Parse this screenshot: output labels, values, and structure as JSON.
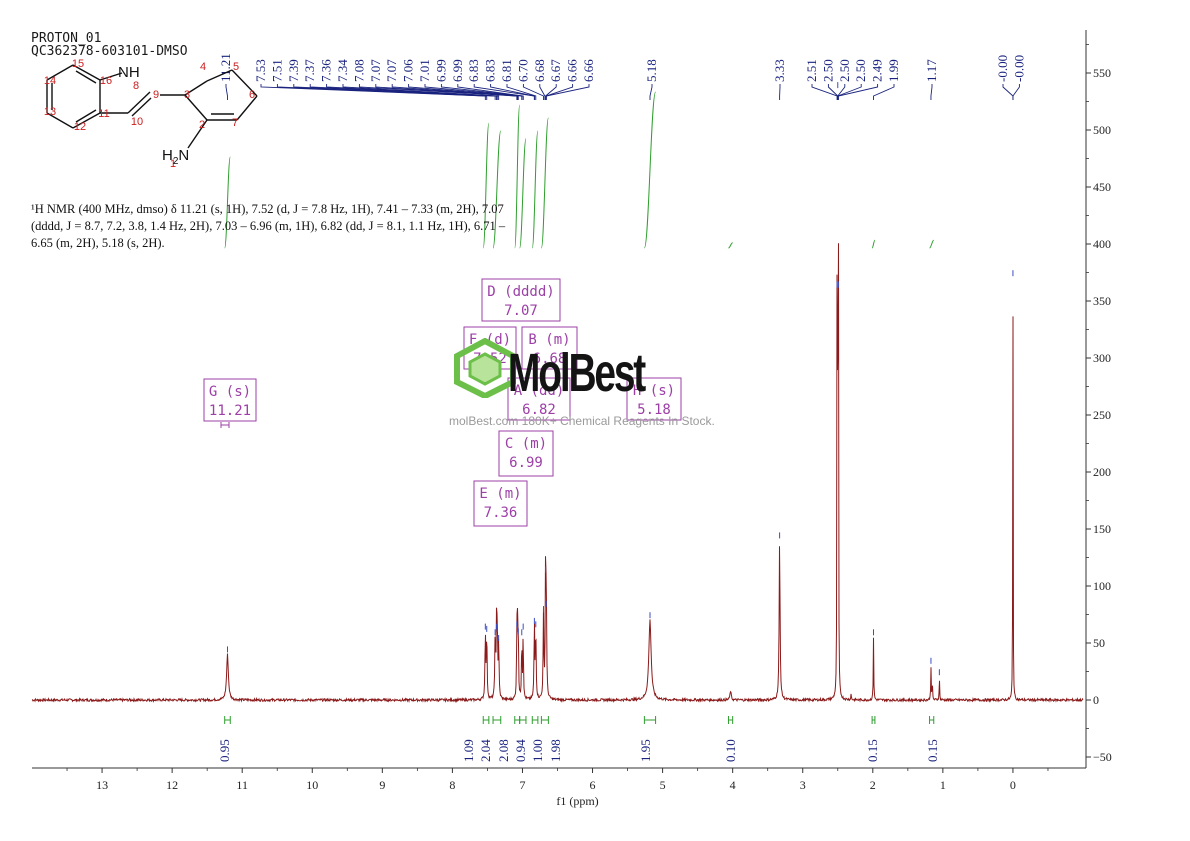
{
  "header": {
    "title": "PROTON_01",
    "sample_id": "QC362378-603101-DMSO"
  },
  "structure": {
    "atom_labels": [
      "1",
      "2",
      "3",
      "4",
      "5",
      "6",
      "7",
      "8",
      "9",
      "10",
      "11",
      "12",
      "13",
      "14",
      "15",
      "16"
    ],
    "nh_label": "NH",
    "nh2_label_H": "H",
    "nh2_label_sub": "2",
    "nh2_label_N": "N"
  },
  "summary": {
    "line1": "¹H NMR (400 MHz, dmso) δ 11.21 (s, 1H), 7.52 (d, J = 7.8 Hz, 1H), 7.41 – 7.33 (m, 2H), 7.07",
    "line2": "(dddd, J = 8.7, 7.2, 3.8, 1.4 Hz, 2H), 7.03 – 6.96 (m, 1H), 6.82 (dd, J = 8.1, 1.1 Hz, 1H), 6.71 –",
    "line3": "6.65 (m, 2H), 5.18 (s, 2H)."
  },
  "watermark": {
    "brand": "MolBest",
    "tagline": "molBest.com 180K+ Chemical Reagents In Stock."
  },
  "colors": {
    "spectrum": "#8b1a1a",
    "peak_labels": "#1a237e",
    "integral_curve": "#2e9e2e",
    "integral_labels": "#1a237e",
    "multiplet_box": "#9c3fa6",
    "structure_numbers": "#cc1f1f",
    "axis": "#333333"
  },
  "chart_data": {
    "type": "line",
    "title": "",
    "xlabel": "f1 (ppm)",
    "ylabel": "",
    "x_reversed": true,
    "xlim": [
      14.0,
      -1.0
    ],
    "ylim": [
      -60,
      590
    ],
    "x_ticks": [
      13,
      12,
      11,
      10,
      9,
      8,
      7,
      6,
      5,
      4,
      3,
      2,
      1,
      0
    ],
    "y_ticks": [
      550,
      500,
      450,
      400,
      350,
      300,
      250,
      200,
      150,
      100,
      50,
      0,
      -50
    ],
    "peaks": [
      {
        "ppm": 11.21,
        "height": 40,
        "width": 0.03
      },
      {
        "ppm": 7.53,
        "height": 60,
        "width": 0.012
      },
      {
        "ppm": 7.51,
        "height": 58,
        "width": 0.012
      },
      {
        "ppm": 7.39,
        "height": 55,
        "width": 0.012
      },
      {
        "ppm": 7.37,
        "height": 60,
        "width": 0.012
      },
      {
        "ppm": 7.36,
        "height": 58,
        "width": 0.012
      },
      {
        "ppm": 7.34,
        "height": 50,
        "width": 0.012
      },
      {
        "ppm": 7.08,
        "height": 62,
        "width": 0.01
      },
      {
        "ppm": 7.07,
        "height": 58,
        "width": 0.01
      },
      {
        "ppm": 7.06,
        "height": 56,
        "width": 0.01
      },
      {
        "ppm": 7.01,
        "height": 55,
        "width": 0.01
      },
      {
        "ppm": 6.99,
        "height": 60,
        "width": 0.01
      },
      {
        "ppm": 6.83,
        "height": 65,
        "width": 0.012
      },
      {
        "ppm": 6.81,
        "height": 62,
        "width": 0.012
      },
      {
        "ppm": 6.7,
        "height": 75,
        "width": 0.012
      },
      {
        "ppm": 6.67,
        "height": 110,
        "width": 0.012
      },
      {
        "ppm": 6.66,
        "height": 80,
        "width": 0.012
      },
      {
        "ppm": 5.18,
        "height": 70,
        "width": 0.04
      },
      {
        "ppm": 4.03,
        "height": 8,
        "width": 0.02
      },
      {
        "ppm": 3.33,
        "height": 140,
        "width": 0.015
      },
      {
        "ppm": 2.5,
        "height": 535,
        "width": 0.006
      },
      {
        "ppm": 2.51,
        "height": 360,
        "width": 0.006
      },
      {
        "ppm": 2.49,
        "height": 360,
        "width": 0.006
      },
      {
        "ppm": 2.31,
        "height": 5,
        "width": 0.01
      },
      {
        "ppm": 1.99,
        "height": 55,
        "width": 0.008
      },
      {
        "ppm": 1.17,
        "height": 30,
        "width": 0.008
      },
      {
        "ppm": 1.15,
        "height": 14,
        "width": 0.008
      },
      {
        "ppm": 1.05,
        "height": 20,
        "width": 0.008
      },
      {
        "ppm": 0.0,
        "height": 370,
        "width": 0.006
      }
    ],
    "peak_labels": [
      {
        "ppm": 11.21,
        "label": "11.21"
      },
      {
        "ppm": 7.53,
        "label": "7.53"
      },
      {
        "ppm": 7.51,
        "label": "7.51"
      },
      {
        "ppm": 7.39,
        "label": "7.39"
      },
      {
        "ppm": 7.37,
        "label": "7.37"
      },
      {
        "ppm": 7.36,
        "label": "7.36"
      },
      {
        "ppm": 7.34,
        "label": "7.34"
      },
      {
        "ppm": 7.08,
        "label": "7.08"
      },
      {
        "ppm": 7.07,
        "label": "7.07"
      },
      {
        "ppm": 7.07,
        "label": "7.07"
      },
      {
        "ppm": 7.06,
        "label": "7.06"
      },
      {
        "ppm": 7.01,
        "label": "7.01"
      },
      {
        "ppm": 6.99,
        "label": "6.99"
      },
      {
        "ppm": 6.99,
        "label": "6.99"
      },
      {
        "ppm": 6.83,
        "label": "6.83"
      },
      {
        "ppm": 6.83,
        "label": "6.83"
      },
      {
        "ppm": 6.81,
        "label": "6.81"
      },
      {
        "ppm": 6.7,
        "label": "6.70"
      },
      {
        "ppm": 6.68,
        "label": "6.68"
      },
      {
        "ppm": 6.67,
        "label": "6.67"
      },
      {
        "ppm": 6.66,
        "label": "6.66"
      },
      {
        "ppm": 6.66,
        "label": "6.66"
      },
      {
        "ppm": 5.18,
        "label": "5.18"
      },
      {
        "ppm": 3.33,
        "label": "3.33"
      },
      {
        "ppm": 2.51,
        "label": "2.51"
      },
      {
        "ppm": 2.5,
        "label": "2.50"
      },
      {
        "ppm": 2.5,
        "label": "2.50"
      },
      {
        "ppm": 2.5,
        "label": "2.50"
      },
      {
        "ppm": 2.49,
        "label": "2.49"
      },
      {
        "ppm": 1.99,
        "label": "1.99"
      },
      {
        "ppm": 1.17,
        "label": "1.17"
      },
      {
        "ppm": 0.0,
        "label": "-0.00"
      },
      {
        "ppm": 0.0,
        "label": "-0.00"
      }
    ],
    "integrals": [
      {
        "from": 11.25,
        "to": 11.17,
        "value": "0.95",
        "height": 0.35
      },
      {
        "from": 7.56,
        "to": 7.48,
        "value": "1.09",
        "height": 0.48
      },
      {
        "from": 7.42,
        "to": 7.31,
        "value": "2.04",
        "height": 0.45
      },
      {
        "from": 7.11,
        "to": 7.04,
        "value": "2.08",
        "height": 0.55
      },
      {
        "from": 7.04,
        "to": 6.95,
        "value": "0.94",
        "height": 0.42
      },
      {
        "from": 6.86,
        "to": 6.78,
        "value": "1.00",
        "height": 0.45
      },
      {
        "from": 6.73,
        "to": 6.63,
        "value": "1.98",
        "height": 0.5
      },
      {
        "from": 5.26,
        "to": 5.1,
        "value": "1.95",
        "height": 0.6
      },
      {
        "from": 4.06,
        "to": 4.0,
        "value": "0.10",
        "height": 0.02
      },
      {
        "from": 2.01,
        "to": 1.97,
        "value": "0.15",
        "height": 0.03
      },
      {
        "from": 1.19,
        "to": 1.13,
        "value": "0.15",
        "height": 0.03
      }
    ],
    "multiplets": [
      {
        "letter": "G",
        "type": "s",
        "shift": "11.21",
        "ppm": 11.21
      },
      {
        "letter": "D",
        "type": "dddd",
        "shift": "7.07",
        "ppm": 7.07
      },
      {
        "letter": "F",
        "type": "d",
        "shift": "7.52",
        "ppm": 7.52
      },
      {
        "letter": "B",
        "type": "m",
        "shift": "6.68",
        "ppm": 6.68
      },
      {
        "letter": "A",
        "type": "dd",
        "shift": "6.82",
        "ppm": 6.82
      },
      {
        "letter": "H",
        "type": "s",
        "shift": "5.18",
        "ppm": 5.18
      },
      {
        "letter": "C",
        "type": "m",
        "shift": "6.99",
        "ppm": 6.99
      },
      {
        "letter": "E",
        "type": "m",
        "shift": "7.36",
        "ppm": 7.36
      }
    ]
  }
}
